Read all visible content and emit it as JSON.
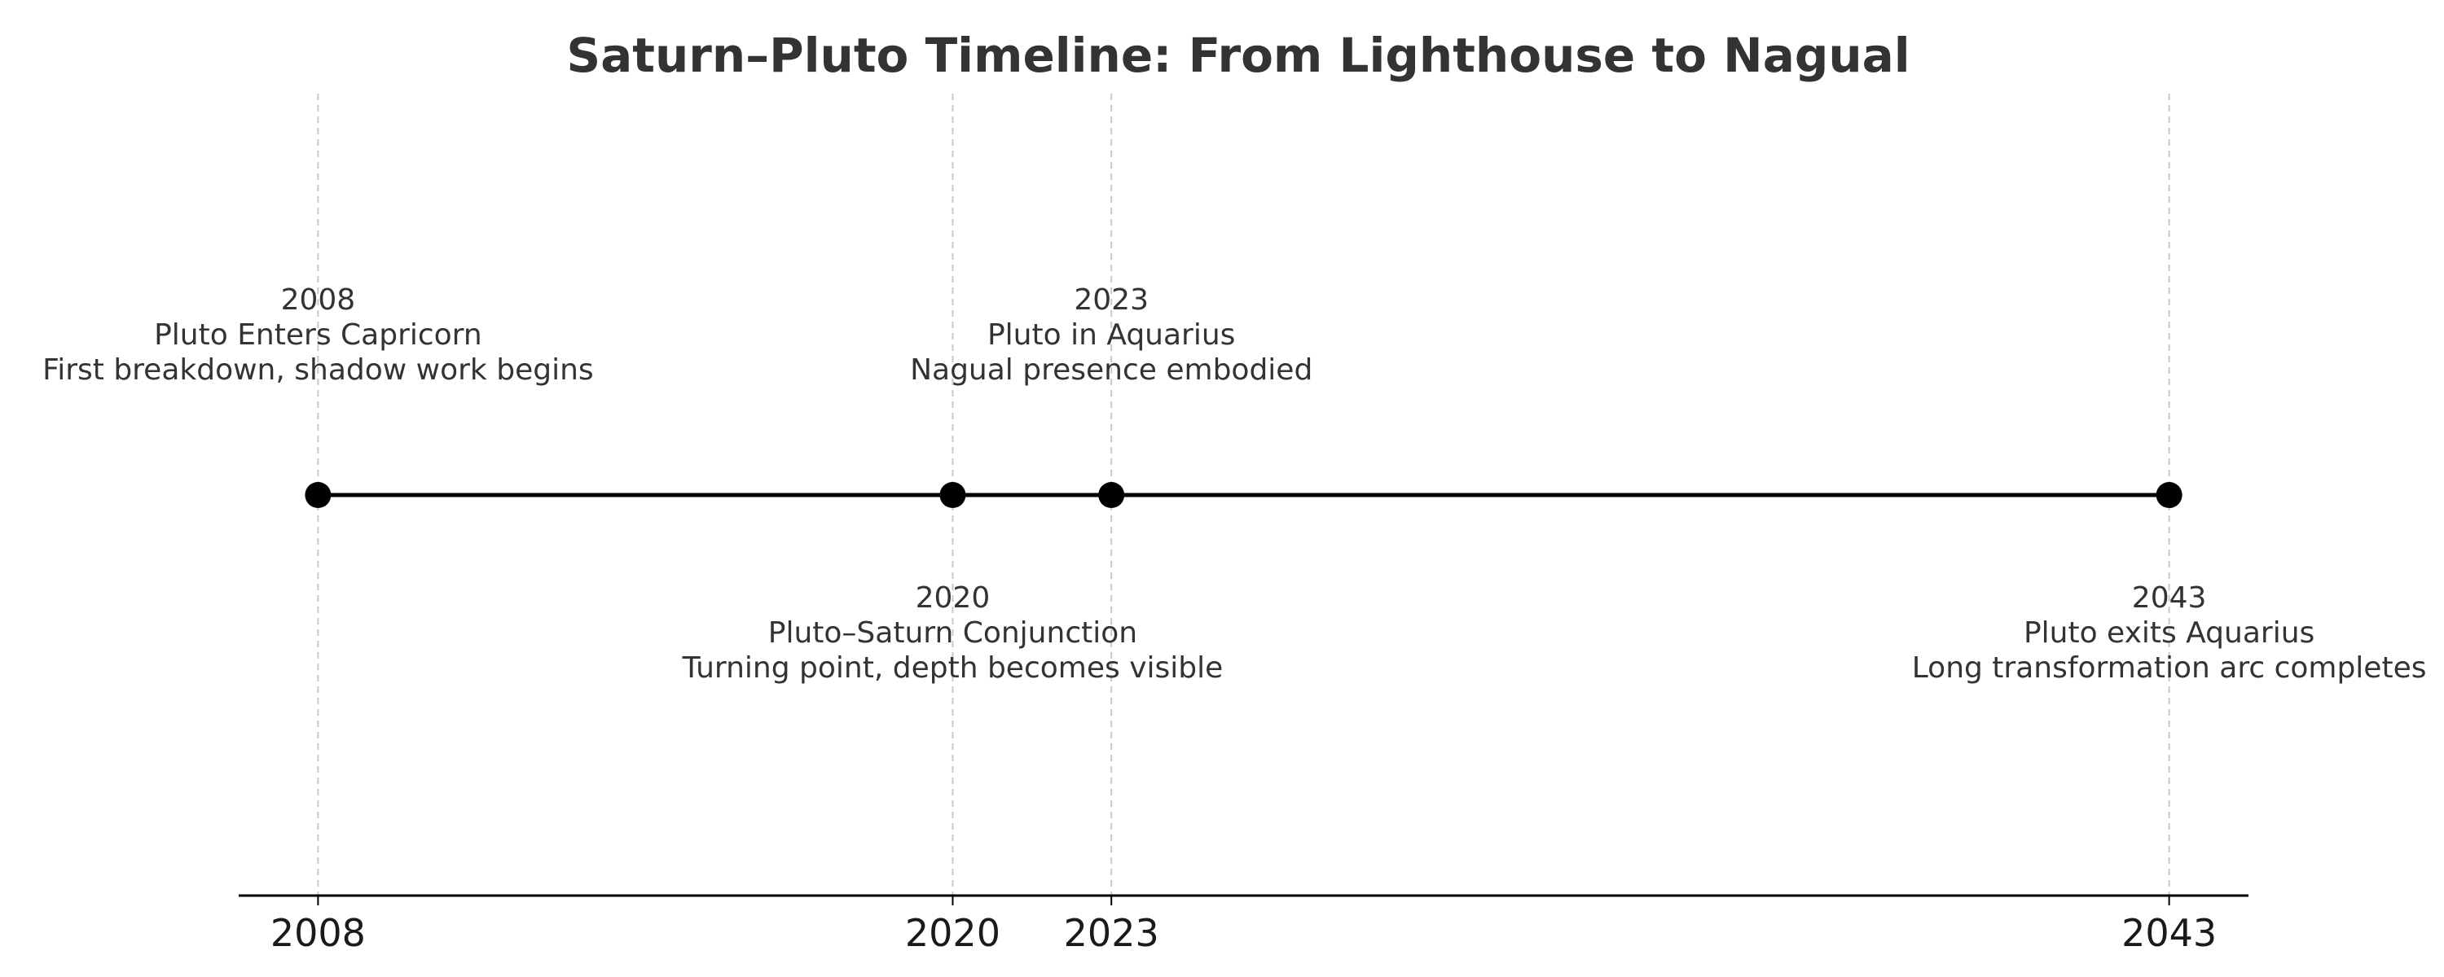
{
  "chart_data": {
    "type": "timeline",
    "title": "Saturn–Pluto Timeline: From Lighthouse to Nagual",
    "xlabel": "",
    "ylabel": "",
    "xlim": [
      2006.5,
      2044.5
    ],
    "grid": true,
    "ticks": [
      "2008",
      "2020",
      "2023",
      "2043"
    ],
    "events": [
      {
        "year": 2008,
        "year_label": "2008",
        "title": "Pluto Enters Capricorn",
        "description": "First breakdown, shadow work begins",
        "label_position": "above"
      },
      {
        "year": 2020,
        "year_label": "2020",
        "title": "Pluto–Saturn Conjunction",
        "description": "Turning point, depth becomes visible",
        "label_position": "below"
      },
      {
        "year": 2023,
        "year_label": "2023",
        "title": "Pluto in Aquarius",
        "description": "Nagual presence embodied",
        "label_position": "above"
      },
      {
        "year": 2043,
        "year_label": "2043",
        "title": "Pluto exits Aquarius",
        "description": "Long transformation arc completes",
        "label_position": "below"
      }
    ],
    "colors": {
      "timeline": "#000000",
      "marker": "#000000",
      "grid": "#c8c8c8",
      "text": "#333333",
      "axis": "#000000"
    }
  }
}
